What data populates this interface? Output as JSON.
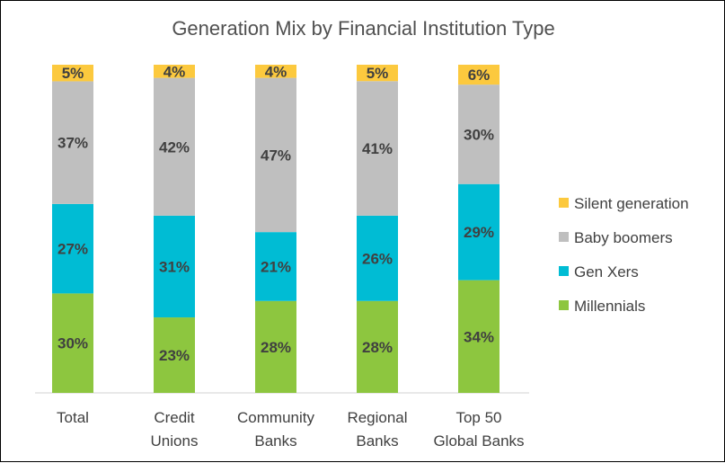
{
  "chart_data": {
    "type": "bar",
    "stacked": true,
    "title": "Generation Mix by Financial Institution Type",
    "categories": [
      [
        "Total"
      ],
      [
        "Credit",
        "Unions"
      ],
      [
        "Community",
        "Banks"
      ],
      [
        "Regional",
        "Banks"
      ],
      [
        "Top 50",
        "Global Banks"
      ]
    ],
    "series": [
      {
        "name": "Millennials",
        "color": "#8dc63f",
        "values": [
          30,
          23,
          28,
          28,
          34
        ]
      },
      {
        "name": "Gen Xers",
        "color": "#00bcd4",
        "values": [
          27,
          31,
          21,
          26,
          29
        ]
      },
      {
        "name": "Baby boomers",
        "color": "#bfbfbf",
        "values": [
          37,
          42,
          47,
          41,
          30
        ]
      },
      {
        "name": "Silent generation",
        "color": "#fcc93e",
        "values": [
          5,
          4,
          4,
          5,
          6
        ]
      }
    ],
    "legend_order": [
      "Silent generation",
      "Baby boomers",
      "Gen Xers",
      "Millennials"
    ],
    "legend_position": "right",
    "value_suffix": "%",
    "ylim": [
      0,
      100
    ],
    "grid": false
  }
}
